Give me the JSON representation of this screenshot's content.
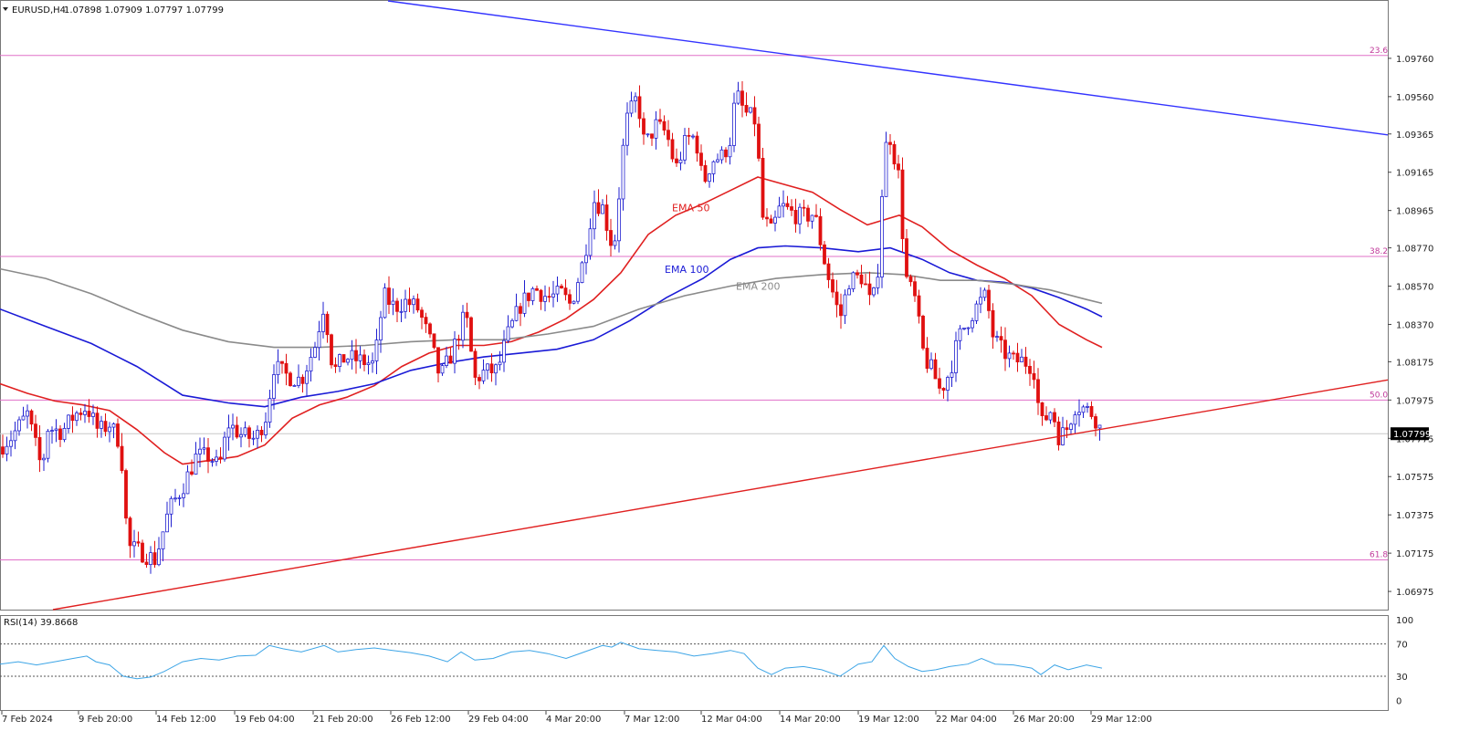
{
  "chart_data": {
    "type": "candlestick",
    "symbol": "EURUSD,H4",
    "header": {
      "title": "EURUSD,H4",
      "ohlc": "1.07898 1.07909 1.07797 1.07799"
    },
    "ylim": [
      1.0688,
      1.1006
    ],
    "price_ticks": [
      "1.09760",
      "1.09560",
      "1.09365",
      "1.09165",
      "1.08965",
      "1.08770",
      "1.08570",
      "1.08370",
      "1.08175",
      "1.07975",
      "1.07775",
      "1.07575",
      "1.07375",
      "1.07175",
      "1.06975"
    ],
    "current_price": "1.07799",
    "time_labels": [
      "7 Feb 2024",
      "9 Feb 20:00",
      "14 Feb 12:00",
      "19 Feb 04:00",
      "21 Feb 20:00",
      "26 Feb 12:00",
      "29 Feb 04:00",
      "4 Mar 20:00",
      "7 Mar 12:00",
      "12 Mar 04:00",
      "14 Mar 20:00",
      "19 Mar 12:00",
      "22 Mar 04:00",
      "26 Mar 20:00",
      "29 Mar 12:00"
    ],
    "fib_levels": [
      {
        "label": "23.6",
        "price": 1.09775
      },
      {
        "label": "38.2",
        "price": 1.08725
      },
      {
        "label": "50.0",
        "price": 1.07975
      },
      {
        "label": "61.8",
        "price": 1.0714
      }
    ],
    "trend_lines": [
      {
        "name": "resistance",
        "color": "#3333ff",
        "from": [
          425,
          1.1006
        ],
        "to": [
          1520,
          1.0936
        ]
      },
      {
        "name": "support",
        "color": "#e02020",
        "from": [
          58,
          1.0688
        ],
        "to": [
          1520,
          1.0808
        ]
      }
    ],
    "ema_series": [
      {
        "name": "EMA 50",
        "color": "#e02020",
        "points": [
          [
            0,
            1.0806
          ],
          [
            30,
            1.0801
          ],
          [
            60,
            1.0797
          ],
          [
            90,
            1.0795
          ],
          [
            120,
            1.0792
          ],
          [
            150,
            1.0782
          ],
          [
            180,
            1.077
          ],
          [
            200,
            1.0764
          ],
          [
            230,
            1.0766
          ],
          [
            260,
            1.0768
          ],
          [
            290,
            1.0774
          ],
          [
            320,
            1.0788
          ],
          [
            350,
            1.0795
          ],
          [
            380,
            1.0799
          ],
          [
            410,
            1.0805
          ],
          [
            440,
            1.0815
          ],
          [
            470,
            1.0822
          ],
          [
            500,
            1.0826
          ],
          [
            530,
            1.0826
          ],
          [
            560,
            1.0828
          ],
          [
            590,
            1.0833
          ],
          [
            620,
            1.084
          ],
          [
            650,
            1.085
          ],
          [
            680,
            1.0864
          ],
          [
            710,
            1.0884
          ],
          [
            740,
            1.0894
          ],
          [
            770,
            1.09
          ],
          [
            800,
            1.0907
          ],
          [
            830,
            1.0914
          ],
          [
            860,
            1.091
          ],
          [
            890,
            1.0906
          ],
          [
            920,
            1.0897
          ],
          [
            950,
            1.0889
          ],
          [
            985,
            1.0894
          ],
          [
            1010,
            1.0888
          ],
          [
            1040,
            1.0876
          ],
          [
            1070,
            1.0868
          ],
          [
            1100,
            1.0861
          ],
          [
            1130,
            1.0852
          ],
          [
            1160,
            1.0837
          ],
          [
            1190,
            1.0829
          ],
          [
            1207,
            1.0825
          ]
        ]
      },
      {
        "name": "EMA 100",
        "color": "#1a1ad6",
        "points": [
          [
            0,
            1.0845
          ],
          [
            50,
            1.0836
          ],
          [
            100,
            1.0827
          ],
          [
            150,
            1.0815
          ],
          [
            200,
            1.08
          ],
          [
            250,
            1.0796
          ],
          [
            290,
            1.0794
          ],
          [
            330,
            1.0799
          ],
          [
            370,
            1.0802
          ],
          [
            410,
            1.0806
          ],
          [
            450,
            1.0813
          ],
          [
            490,
            1.0817
          ],
          [
            530,
            1.082
          ],
          [
            570,
            1.0822
          ],
          [
            610,
            1.0824
          ],
          [
            650,
            1.0829
          ],
          [
            690,
            1.0839
          ],
          [
            730,
            1.0851
          ],
          [
            770,
            1.0861
          ],
          [
            800,
            1.0871
          ],
          [
            830,
            1.0877
          ],
          [
            860,
            1.0878
          ],
          [
            900,
            1.0877
          ],
          [
            940,
            1.0875
          ],
          [
            975,
            1.0877
          ],
          [
            1010,
            1.0871
          ],
          [
            1040,
            1.0864
          ],
          [
            1070,
            1.086
          ],
          [
            1100,
            1.0859
          ],
          [
            1130,
            1.0856
          ],
          [
            1160,
            1.0851
          ],
          [
            1190,
            1.0845
          ],
          [
            1207,
            1.0841
          ]
        ]
      },
      {
        "name": "EMA 200",
        "color": "#8a8a8a",
        "points": [
          [
            0,
            1.0866
          ],
          [
            50,
            1.0861
          ],
          [
            100,
            1.0853
          ],
          [
            150,
            1.0843
          ],
          [
            200,
            1.0834
          ],
          [
            250,
            1.0828
          ],
          [
            300,
            1.0825
          ],
          [
            350,
            1.0825
          ],
          [
            400,
            1.0826
          ],
          [
            450,
            1.0828
          ],
          [
            500,
            1.0829
          ],
          [
            550,
            1.0829
          ],
          [
            600,
            1.0832
          ],
          [
            650,
            1.0836
          ],
          [
            700,
            1.0845
          ],
          [
            750,
            1.0852
          ],
          [
            800,
            1.0857
          ],
          [
            850,
            1.0861
          ],
          [
            900,
            1.0863
          ],
          [
            950,
            1.0864
          ],
          [
            990,
            1.0863
          ],
          [
            1030,
            1.086
          ],
          [
            1070,
            1.086
          ],
          [
            1110,
            1.0858
          ],
          [
            1150,
            1.0855
          ],
          [
            1190,
            1.085
          ],
          [
            1207,
            1.0848
          ]
        ]
      }
    ],
    "ema_labels": [
      {
        "text": "EMA 50",
        "color": "#e02020",
        "anchor": [
          736,
          1.0896
        ]
      },
      {
        "text": "EMA 100",
        "color": "#1a1ad6",
        "anchor": [
          728,
          1.0864
        ]
      },
      {
        "text": "EMA 200",
        "color": "#8a8a8a",
        "anchor": [
          806,
          1.0855
        ]
      }
    ],
    "price_path": [
      [
        0,
        1.0773
      ],
      [
        12,
        1.0778
      ],
      [
        30,
        1.079
      ],
      [
        46,
        1.0761
      ],
      [
        52,
        1.0783
      ],
      [
        68,
        1.0781
      ],
      [
        82,
        1.079
      ],
      [
        95,
        1.0794
      ],
      [
        108,
        1.0781
      ],
      [
        120,
        1.0785
      ],
      [
        132,
        1.0775
      ],
      [
        140,
        1.0721
      ],
      [
        155,
        1.0718
      ],
      [
        170,
        1.0714
      ],
      [
        185,
        1.074
      ],
      [
        200,
        1.0752
      ],
      [
        215,
        1.0768
      ],
      [
        230,
        1.0768
      ],
      [
        240,
        1.0762
      ],
      [
        250,
        1.0785
      ],
      [
        265,
        1.0779
      ],
      [
        280,
        1.0777
      ],
      [
        292,
        1.079
      ],
      [
        300,
        1.0815
      ],
      [
        315,
        1.081
      ],
      [
        330,
        1.0808
      ],
      [
        345,
        1.0826
      ],
      [
        355,
        1.0848
      ],
      [
        365,
        1.0812
      ],
      [
        378,
        1.082
      ],
      [
        395,
        1.0818
      ],
      [
        410,
        1.0816
      ],
      [
        420,
        1.0852
      ],
      [
        432,
        1.0846
      ],
      [
        445,
        1.0849
      ],
      [
        458,
        1.0845
      ],
      [
        472,
        1.0827
      ],
      [
        482,
        1.0809
      ],
      [
        495,
        1.0822
      ],
      [
        510,
        1.0843
      ],
      [
        520,
        1.0808
      ],
      [
        530,
        1.0812
      ],
      [
        545,
        1.0813
      ],
      [
        555,
        1.083
      ],
      [
        570,
        1.0847
      ],
      [
        585,
        1.0856
      ],
      [
        600,
        1.0851
      ],
      [
        615,
        1.0853
      ],
      [
        625,
        1.0847
      ],
      [
        640,
        1.0872
      ],
      [
        650,
        1.0902
      ],
      [
        660,
        1.0898
      ],
      [
        672,
        1.0875
      ],
      [
        678,
        1.0905
      ],
      [
        685,
        1.0942
      ],
      [
        698,
        1.0956
      ],
      [
        706,
        1.093
      ],
      [
        718,
        1.0941
      ],
      [
        730,
        1.0937
      ],
      [
        740,
        1.0918
      ],
      [
        752,
        1.0934
      ],
      [
        762,
        1.0935
      ],
      [
        770,
        1.091
      ],
      [
        780,
        1.0923
      ],
      [
        792,
        1.0925
      ],
      [
        800,
        1.0934
      ],
      [
        806,
        1.0958
      ],
      [
        815,
        1.0948
      ],
      [
        828,
        1.0943
      ],
      [
        835,
        1.0893
      ],
      [
        845,
        1.0885
      ],
      [
        855,
        1.0899
      ],
      [
        868,
        1.0895
      ],
      [
        878,
        1.0893
      ],
      [
        892,
        1.0895
      ],
      [
        905,
        1.0866
      ],
      [
        920,
        1.084
      ],
      [
        930,
        1.086
      ],
      [
        945,
        1.0862
      ],
      [
        955,
        1.0845
      ],
      [
        962,
        1.0868
      ],
      [
        968,
        1.0925
      ],
      [
        974,
        1.0937
      ],
      [
        984,
        1.0915
      ],
      [
        992,
        1.0862
      ],
      [
        1002,
        1.085
      ],
      [
        1012,
        1.082
      ],
      [
        1022,
        1.0812
      ],
      [
        1030,
        1.0802
      ],
      [
        1040,
        1.0812
      ],
      [
        1050,
        1.083
      ],
      [
        1060,
        1.0839
      ],
      [
        1072,
        1.0848
      ],
      [
        1080,
        1.0852
      ],
      [
        1088,
        1.083
      ],
      [
        1098,
        1.0823
      ],
      [
        1110,
        1.0818
      ],
      [
        1120,
        1.0818
      ],
      [
        1132,
        1.0815
      ],
      [
        1140,
        1.0784
      ],
      [
        1152,
        1.0793
      ],
      [
        1160,
        1.0778
      ],
      [
        1168,
        1.0782
      ],
      [
        1178,
        1.0795
      ],
      [
        1188,
        1.0793
      ],
      [
        1198,
        1.079
      ],
      [
        1207,
        1.078
      ]
    ],
    "rsi": {
      "label": "RSI(14) 39.8668",
      "ticks": [
        "100",
        "70",
        "30",
        "0"
      ],
      "levels": [
        70,
        30
      ],
      "points": [
        [
          0,
          45
        ],
        [
          20,
          48
        ],
        [
          40,
          44
        ],
        [
          60,
          48
        ],
        [
          80,
          52
        ],
        [
          95,
          55
        ],
        [
          105,
          48
        ],
        [
          120,
          44
        ],
        [
          135,
          30
        ],
        [
          150,
          27
        ],
        [
          165,
          29
        ],
        [
          180,
          36
        ],
        [
          200,
          48
        ],
        [
          220,
          52
        ],
        [
          240,
          50
        ],
        [
          260,
          55
        ],
        [
          280,
          56
        ],
        [
          295,
          68
        ],
        [
          310,
          64
        ],
        [
          330,
          60
        ],
        [
          355,
          68
        ],
        [
          370,
          60
        ],
        [
          390,
          63
        ],
        [
          410,
          65
        ],
        [
          430,
          62
        ],
        [
          450,
          59
        ],
        [
          470,
          55
        ],
        [
          490,
          48
        ],
        [
          505,
          60
        ],
        [
          520,
          50
        ],
        [
          540,
          52
        ],
        [
          560,
          60
        ],
        [
          580,
          62
        ],
        [
          600,
          58
        ],
        [
          620,
          52
        ],
        [
          640,
          60
        ],
        [
          660,
          68
        ],
        [
          670,
          66
        ],
        [
          680,
          72
        ],
        [
          700,
          64
        ],
        [
          720,
          62
        ],
        [
          740,
          60
        ],
        [
          760,
          55
        ],
        [
          780,
          58
        ],
        [
          800,
          62
        ],
        [
          815,
          58
        ],
        [
          830,
          40
        ],
        [
          845,
          32
        ],
        [
          860,
          40
        ],
        [
          880,
          42
        ],
        [
          900,
          38
        ],
        [
          920,
          30
        ],
        [
          940,
          45
        ],
        [
          955,
          48
        ],
        [
          968,
          68
        ],
        [
          980,
          52
        ],
        [
          995,
          42
        ],
        [
          1010,
          36
        ],
        [
          1025,
          38
        ],
        [
          1040,
          42
        ],
        [
          1060,
          45
        ],
        [
          1075,
          52
        ],
        [
          1090,
          45
        ],
        [
          1110,
          44
        ],
        [
          1130,
          40
        ],
        [
          1140,
          32
        ],
        [
          1155,
          44
        ],
        [
          1170,
          38
        ],
        [
          1190,
          44
        ],
        [
          1207,
          40
        ]
      ]
    }
  }
}
